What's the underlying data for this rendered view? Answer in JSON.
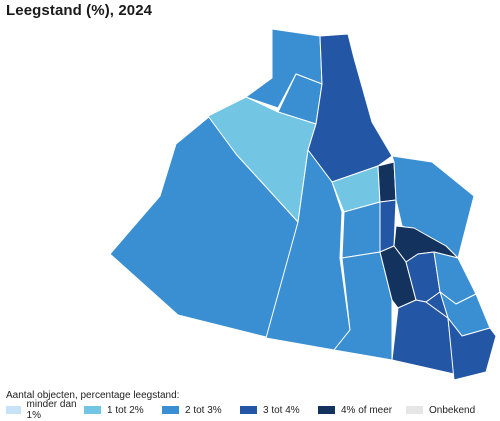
{
  "title": "Leegstand (%), 2024",
  "legend": {
    "title": "Aantal objecten, percentage leegstand:",
    "items": [
      {
        "label": "minder dan 1%",
        "color": "#c6e3f7"
      },
      {
        "label": "1 tot 2%",
        "color": "#72c6e3"
      },
      {
        "label": "2 tot 3%",
        "color": "#3a8fd3"
      },
      {
        "label": "3 tot 4%",
        "color": "#2357a6"
      },
      {
        "label": "4% of meer",
        "color": "#14325e"
      },
      {
        "label": "Onbekend",
        "color": "#e6e6e6"
      }
    ]
  },
  "regions": [
    {
      "name": "north-strip",
      "class_index": 2
    },
    {
      "name": "northwest-small",
      "class_index": 2
    },
    {
      "name": "west-large",
      "class_index": 2
    },
    {
      "name": "northwest-light",
      "class_index": 1
    },
    {
      "name": "north-dark-strip",
      "class_index": 3
    },
    {
      "name": "center-large",
      "class_index": 2
    },
    {
      "name": "center-light",
      "class_index": 1
    },
    {
      "name": "center-dark-small",
      "class_index": 4
    },
    {
      "name": "center-mid",
      "class_index": 2
    },
    {
      "name": "center-blue-strip",
      "class_index": 3
    },
    {
      "name": "east-upper",
      "class_index": 2
    },
    {
      "name": "east-darkest",
      "class_index": 4
    },
    {
      "name": "south-center",
      "class_index": 2
    },
    {
      "name": "south-dark-strip",
      "class_index": 4
    },
    {
      "name": "southeast-small-dark",
      "class_index": 3
    },
    {
      "name": "southeast-small-light",
      "class_index": 2
    },
    {
      "name": "southeast-bottom-light",
      "class_index": 2
    },
    {
      "name": "south-dark-left",
      "class_index": 3
    },
    {
      "name": "south-dark-right",
      "class_index": 3
    }
  ]
}
